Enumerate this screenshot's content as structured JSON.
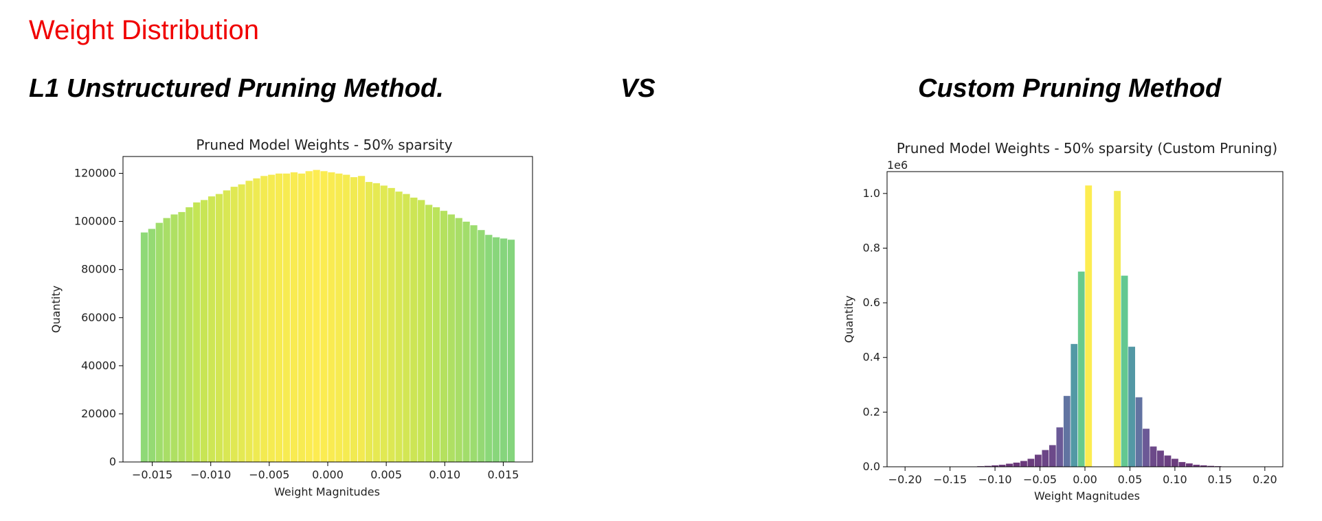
{
  "slide": {
    "title": "Weight Distribution",
    "heading_left": "L1 Unstructured Pruning Method.",
    "heading_vs": "VS",
    "heading_right": "Custom Pruning Method",
    "title_color": "#f00000"
  },
  "chart_data": [
    {
      "type": "bar",
      "subtype": "histogram",
      "title": "Pruned Model Weights - 50% sparsity",
      "xlabel": "Weight Magnitudes",
      "ylabel": "Quantity",
      "xlim": [
        -0.0175,
        0.0175
      ],
      "ylim": [
        0,
        127000
      ],
      "xticks": [
        -0.015,
        -0.01,
        -0.005,
        0.0,
        0.005,
        0.01,
        0.015
      ],
      "xtick_labels": [
        "−0.015",
        "−0.010",
        "−0.005",
        "0.000",
        "0.005",
        "0.010",
        "0.015"
      ],
      "yticks": [
        0,
        20000,
        40000,
        60000,
        80000,
        100000,
        120000
      ],
      "ytick_labels": [
        "0",
        "20000",
        "40000",
        "60000",
        "80000",
        "100000",
        "120000"
      ],
      "offset_text": "",
      "colormap": "viridis (color by height)",
      "grid": false,
      "bin_start": -0.016,
      "bin_width": 0.00064,
      "values": [
        95500,
        97000,
        99500,
        101500,
        103000,
        104000,
        106000,
        108000,
        109000,
        110500,
        111500,
        113000,
        114500,
        115500,
        117000,
        118000,
        119000,
        119500,
        120000,
        120000,
        120500,
        120000,
        121000,
        121500,
        121000,
        120500,
        120000,
        119500,
        118500,
        119000,
        116500,
        116000,
        115000,
        114000,
        112500,
        111500,
        110000,
        109000,
        107000,
        106000,
        104500,
        103000,
        101500,
        100000,
        98500,
        96500,
        94500,
        93500,
        93000,
        92500
      ]
    },
    {
      "type": "bar",
      "subtype": "histogram",
      "title": "Pruned Model Weights - 50% sparsity (Custom Pruning)",
      "xlabel": "Weight Magnitudes",
      "ylabel": "Quantity",
      "xlim": [
        -0.22,
        0.22
      ],
      "ylim": [
        0,
        1.08
      ],
      "xticks": [
        -0.2,
        -0.15,
        -0.1,
        -0.05,
        0.0,
        0.05,
        0.1,
        0.15,
        0.2
      ],
      "xtick_labels": [
        "−0.20",
        "−0.15",
        "−0.10",
        "−0.05",
        "0.00",
        "0.05",
        "0.10",
        "0.15",
        "0.20"
      ],
      "yticks": [
        0,
        0.2,
        0.4,
        0.6,
        0.8,
        1.0
      ],
      "ytick_labels": [
        "0.0",
        "0.2",
        "0.4",
        "0.6",
        "0.8",
        "1.0"
      ],
      "offset_text": "1e6",
      "colormap": "viridis (color by height)",
      "grid": false,
      "bin_start": -0.2,
      "bin_width": 0.008,
      "values": [
        0,
        0,
        0,
        0,
        0.001,
        0.001,
        0.001,
        0.002,
        0.002,
        0.002,
        0.003,
        0.004,
        0.006,
        0.008,
        0.012,
        0.016,
        0.022,
        0.03,
        0.045,
        0.062,
        0.08,
        0.145,
        0.26,
        0.45,
        0.715,
        1.03,
        0,
        0,
        0,
        1.01,
        0.7,
        0.44,
        0.255,
        0.14,
        0.075,
        0.06,
        0.042,
        0.03,
        0.018,
        0.013,
        0.008,
        0.006,
        0.004,
        0.003,
        0.002,
        0.002,
        0.001,
        0.001,
        0.001,
        0,
        0
      ]
    }
  ]
}
